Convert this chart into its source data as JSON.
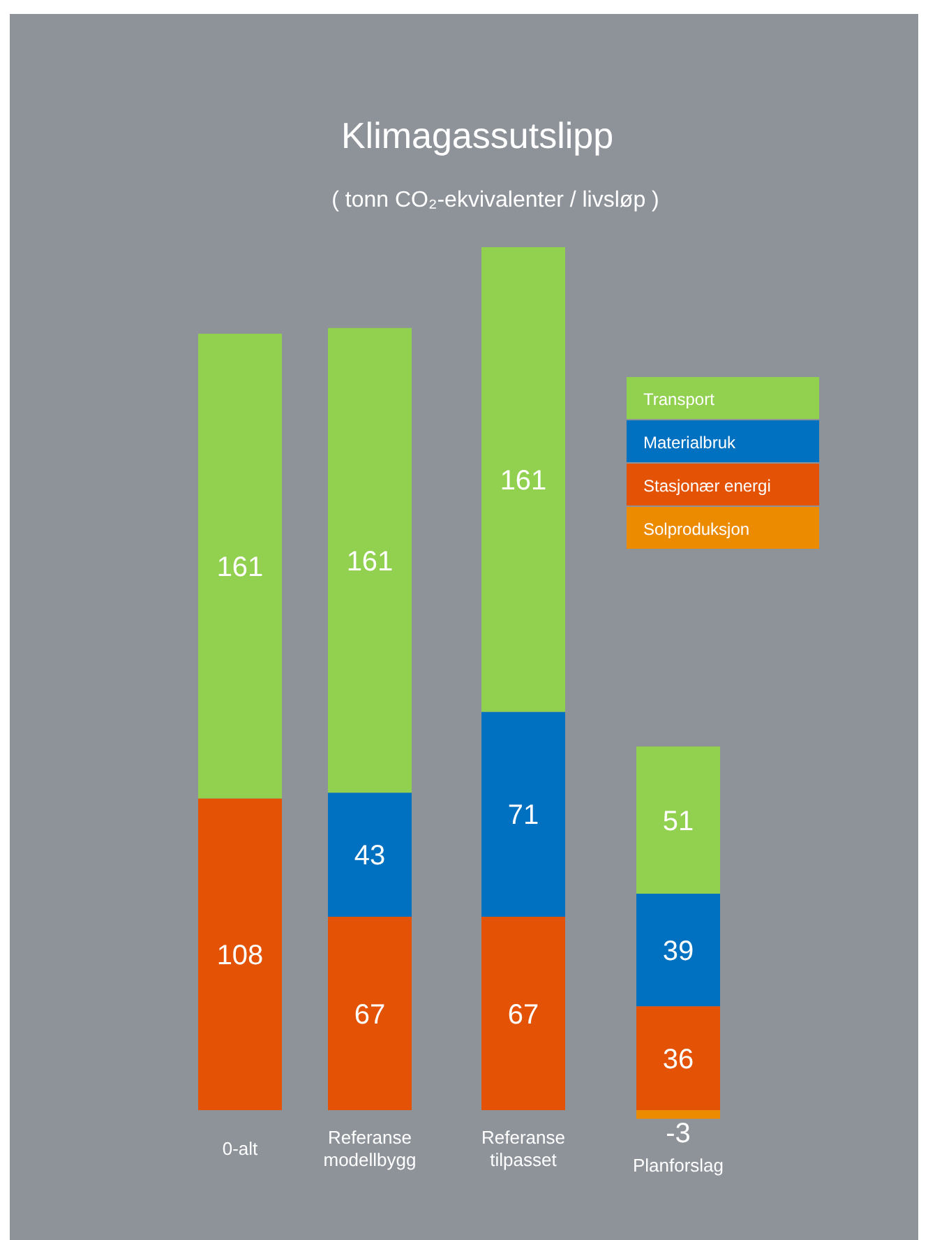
{
  "chart_data": {
    "type": "bar",
    "title": "Klimagassutslipp",
    "subtitle": "( tonn CO₂-ekvivalenter / livsløp )",
    "categories": [
      "0-alt",
      "Referanse modellbygg",
      "Referanse tilpasset",
      "Planforslag"
    ],
    "stacked": true,
    "data_labels": true,
    "legend": "right",
    "grid": false,
    "series": [
      {
        "name": "Stasjonær energi",
        "color": "#e35205",
        "values": [
          108,
          67,
          67,
          36
        ]
      },
      {
        "name": "Materialbruk",
        "color": "#0070c0",
        "values": [
          null,
          43,
          71,
          39
        ]
      },
      {
        "name": "Transport",
        "color": "#92d050",
        "values": [
          161,
          161,
          161,
          51
        ]
      },
      {
        "name": "Solproduksjon",
        "color": "#ed8b00",
        "values": [
          null,
          null,
          null,
          -3
        ]
      }
    ]
  }
}
